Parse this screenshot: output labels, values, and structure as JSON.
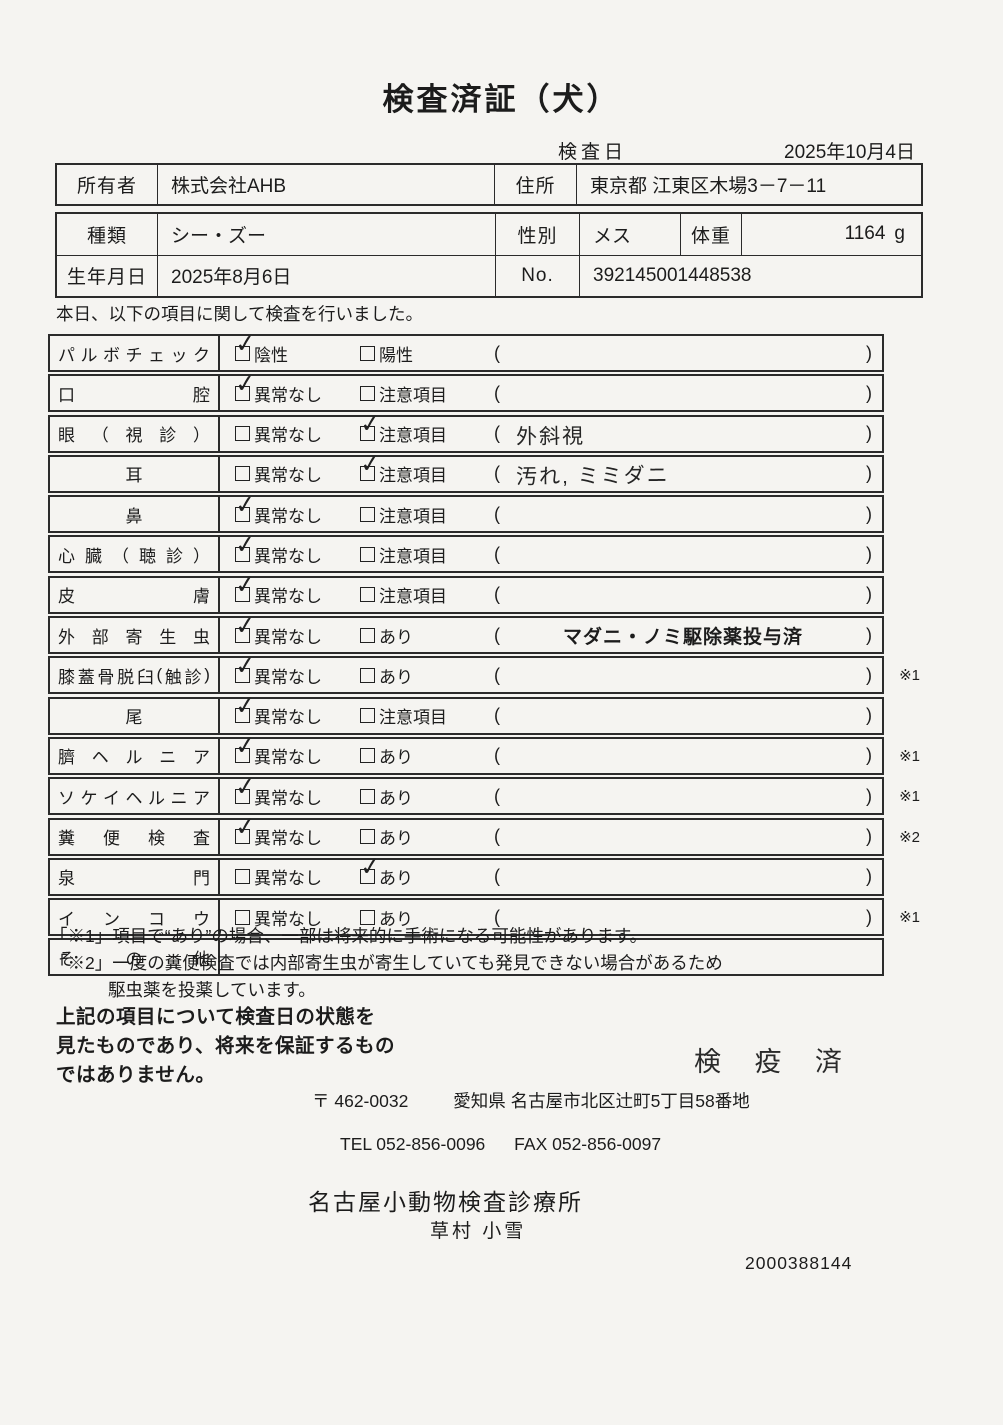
{
  "colors": {
    "paper": "#f5f4f1",
    "ink": "#1c1c1c",
    "border": "#2b2b2b"
  },
  "header": {
    "title": "検査済証（犬）",
    "inspection_date_label": "検査日",
    "inspection_date": "2025年10月4日"
  },
  "owner_table": {
    "owner_label": "所有者",
    "owner_value": "株式会社AHB",
    "address_label": "住所",
    "address_value": "東京都 江東区木場3－7－11"
  },
  "animal_table": {
    "breed_label": "種類",
    "breed_value": "シー・ズー",
    "sex_label": "性別",
    "sex_value": "メス",
    "weight_label": "体重",
    "weight_value": "1164",
    "weight_unit": "g",
    "birth_label": "生年月日",
    "birth_value": "2025年8月6日",
    "no_label": "No.",
    "no_value": "392145001448538"
  },
  "intro_text": "本日、以下の項目に関して検査を行いました。",
  "checklist": {
    "check_glyph": "✓",
    "paren_open": "(",
    "paren_close": ")",
    "rows": [
      {
        "label": "パルボチェック",
        "options": [
          {
            "label": "陰性",
            "checked": true
          },
          {
            "label": "陽性",
            "checked": false
          }
        ],
        "note": "",
        "note_type": "",
        "mark": "",
        "no_parens": false
      },
      {
        "label": "口腔",
        "options": [
          {
            "label": "異常なし",
            "checked": true
          },
          {
            "label": "注意項目",
            "checked": false
          }
        ],
        "note": "",
        "note_type": "",
        "mark": "",
        "no_parens": false
      },
      {
        "label": "眼（視診）",
        "options": [
          {
            "label": "異常なし",
            "checked": false
          },
          {
            "label": "注意項目",
            "checked": true
          }
        ],
        "note": "外斜視",
        "note_type": "handwritten",
        "mark": "",
        "no_parens": false
      },
      {
        "label": "耳",
        "options": [
          {
            "label": "異常なし",
            "checked": false
          },
          {
            "label": "注意項目",
            "checked": true
          }
        ],
        "note": "汚れ, ミミダニ",
        "note_type": "handwritten",
        "mark": "",
        "no_parens": false
      },
      {
        "label": "鼻",
        "options": [
          {
            "label": "異常なし",
            "checked": true
          },
          {
            "label": "注意項目",
            "checked": false
          }
        ],
        "note": "",
        "note_type": "",
        "mark": "",
        "no_parens": false
      },
      {
        "label": "心臓（聴診）",
        "options": [
          {
            "label": "異常なし",
            "checked": true
          },
          {
            "label": "注意項目",
            "checked": false
          }
        ],
        "note": "",
        "note_type": "",
        "mark": "",
        "no_parens": false
      },
      {
        "label": "皮膚",
        "options": [
          {
            "label": "異常なし",
            "checked": true
          },
          {
            "label": "注意項目",
            "checked": false
          }
        ],
        "note": "",
        "note_type": "",
        "mark": "",
        "no_parens": false
      },
      {
        "label": "外部寄生虫",
        "options": [
          {
            "label": "異常なし",
            "checked": true
          },
          {
            "label": "あり",
            "checked": false
          }
        ],
        "note": "マダニ・ノミ駆除薬投与済",
        "note_type": "printed",
        "mark": "",
        "no_parens": false
      },
      {
        "label": "膝蓋骨脱臼(触診)",
        "options": [
          {
            "label": "異常なし",
            "checked": true
          },
          {
            "label": "あり",
            "checked": false
          }
        ],
        "note": "",
        "note_type": "",
        "mark": "※1",
        "no_parens": false
      },
      {
        "label": "尾",
        "options": [
          {
            "label": "異常なし",
            "checked": true
          },
          {
            "label": "注意項目",
            "checked": false
          }
        ],
        "note": "",
        "note_type": "",
        "mark": "",
        "no_parens": false
      },
      {
        "label": "臍ヘルニア",
        "options": [
          {
            "label": "異常なし",
            "checked": true
          },
          {
            "label": "あり",
            "checked": false
          }
        ],
        "note": "",
        "note_type": "",
        "mark": "※1",
        "no_parens": false
      },
      {
        "label": "ソケイヘルニア",
        "options": [
          {
            "label": "異常なし",
            "checked": true
          },
          {
            "label": "あり",
            "checked": false
          }
        ],
        "note": "",
        "note_type": "",
        "mark": "※1",
        "no_parens": false
      },
      {
        "label": "糞便検査",
        "options": [
          {
            "label": "異常なし",
            "checked": true
          },
          {
            "label": "あり",
            "checked": false
          }
        ],
        "note": "",
        "note_type": "",
        "mark": "※2",
        "no_parens": false
      },
      {
        "label": "泉門",
        "options": [
          {
            "label": "異常なし",
            "checked": false
          },
          {
            "label": "あり",
            "checked": true
          }
        ],
        "note": "",
        "note_type": "",
        "mark": "",
        "no_parens": false
      },
      {
        "label": "インコウ",
        "options": [
          {
            "label": "異常なし",
            "checked": false
          },
          {
            "label": "あり",
            "checked": false
          }
        ],
        "note": "",
        "note_type": "",
        "mark": "※1",
        "no_parens": false
      },
      {
        "label": "その他",
        "options": [],
        "note": "",
        "note_type": "",
        "mark": "",
        "no_parens": true
      }
    ]
  },
  "footnotes": [
    {
      "text": "「※1」項目で“あり”の場合、一部は将来的に手術になる可能性があります。",
      "indent": false
    },
    {
      "text": "「※2」一度の糞便検査では内部寄生虫が寄生していても発見できない場合があるため",
      "indent": false
    },
    {
      "text": "駆虫薬を投薬しています。",
      "indent": true
    }
  ],
  "disclaimer_lines": [
    "上記の項目について検査日の状態を",
    "見たものであり、将来を保証するもの",
    "ではありません。"
  ],
  "quarantine_stamp": "検 疫 済",
  "clinic": {
    "postal": "〒 462-0032",
    "address": "愛知県 名古屋市北区辻町5丁目58番地",
    "tel": "TEL 052-856-0096",
    "fax": "FAX 052-856-0097",
    "name": "名古屋小動物検査診療所",
    "examiner": "草村 小雪"
  },
  "document_number": "2000388144"
}
